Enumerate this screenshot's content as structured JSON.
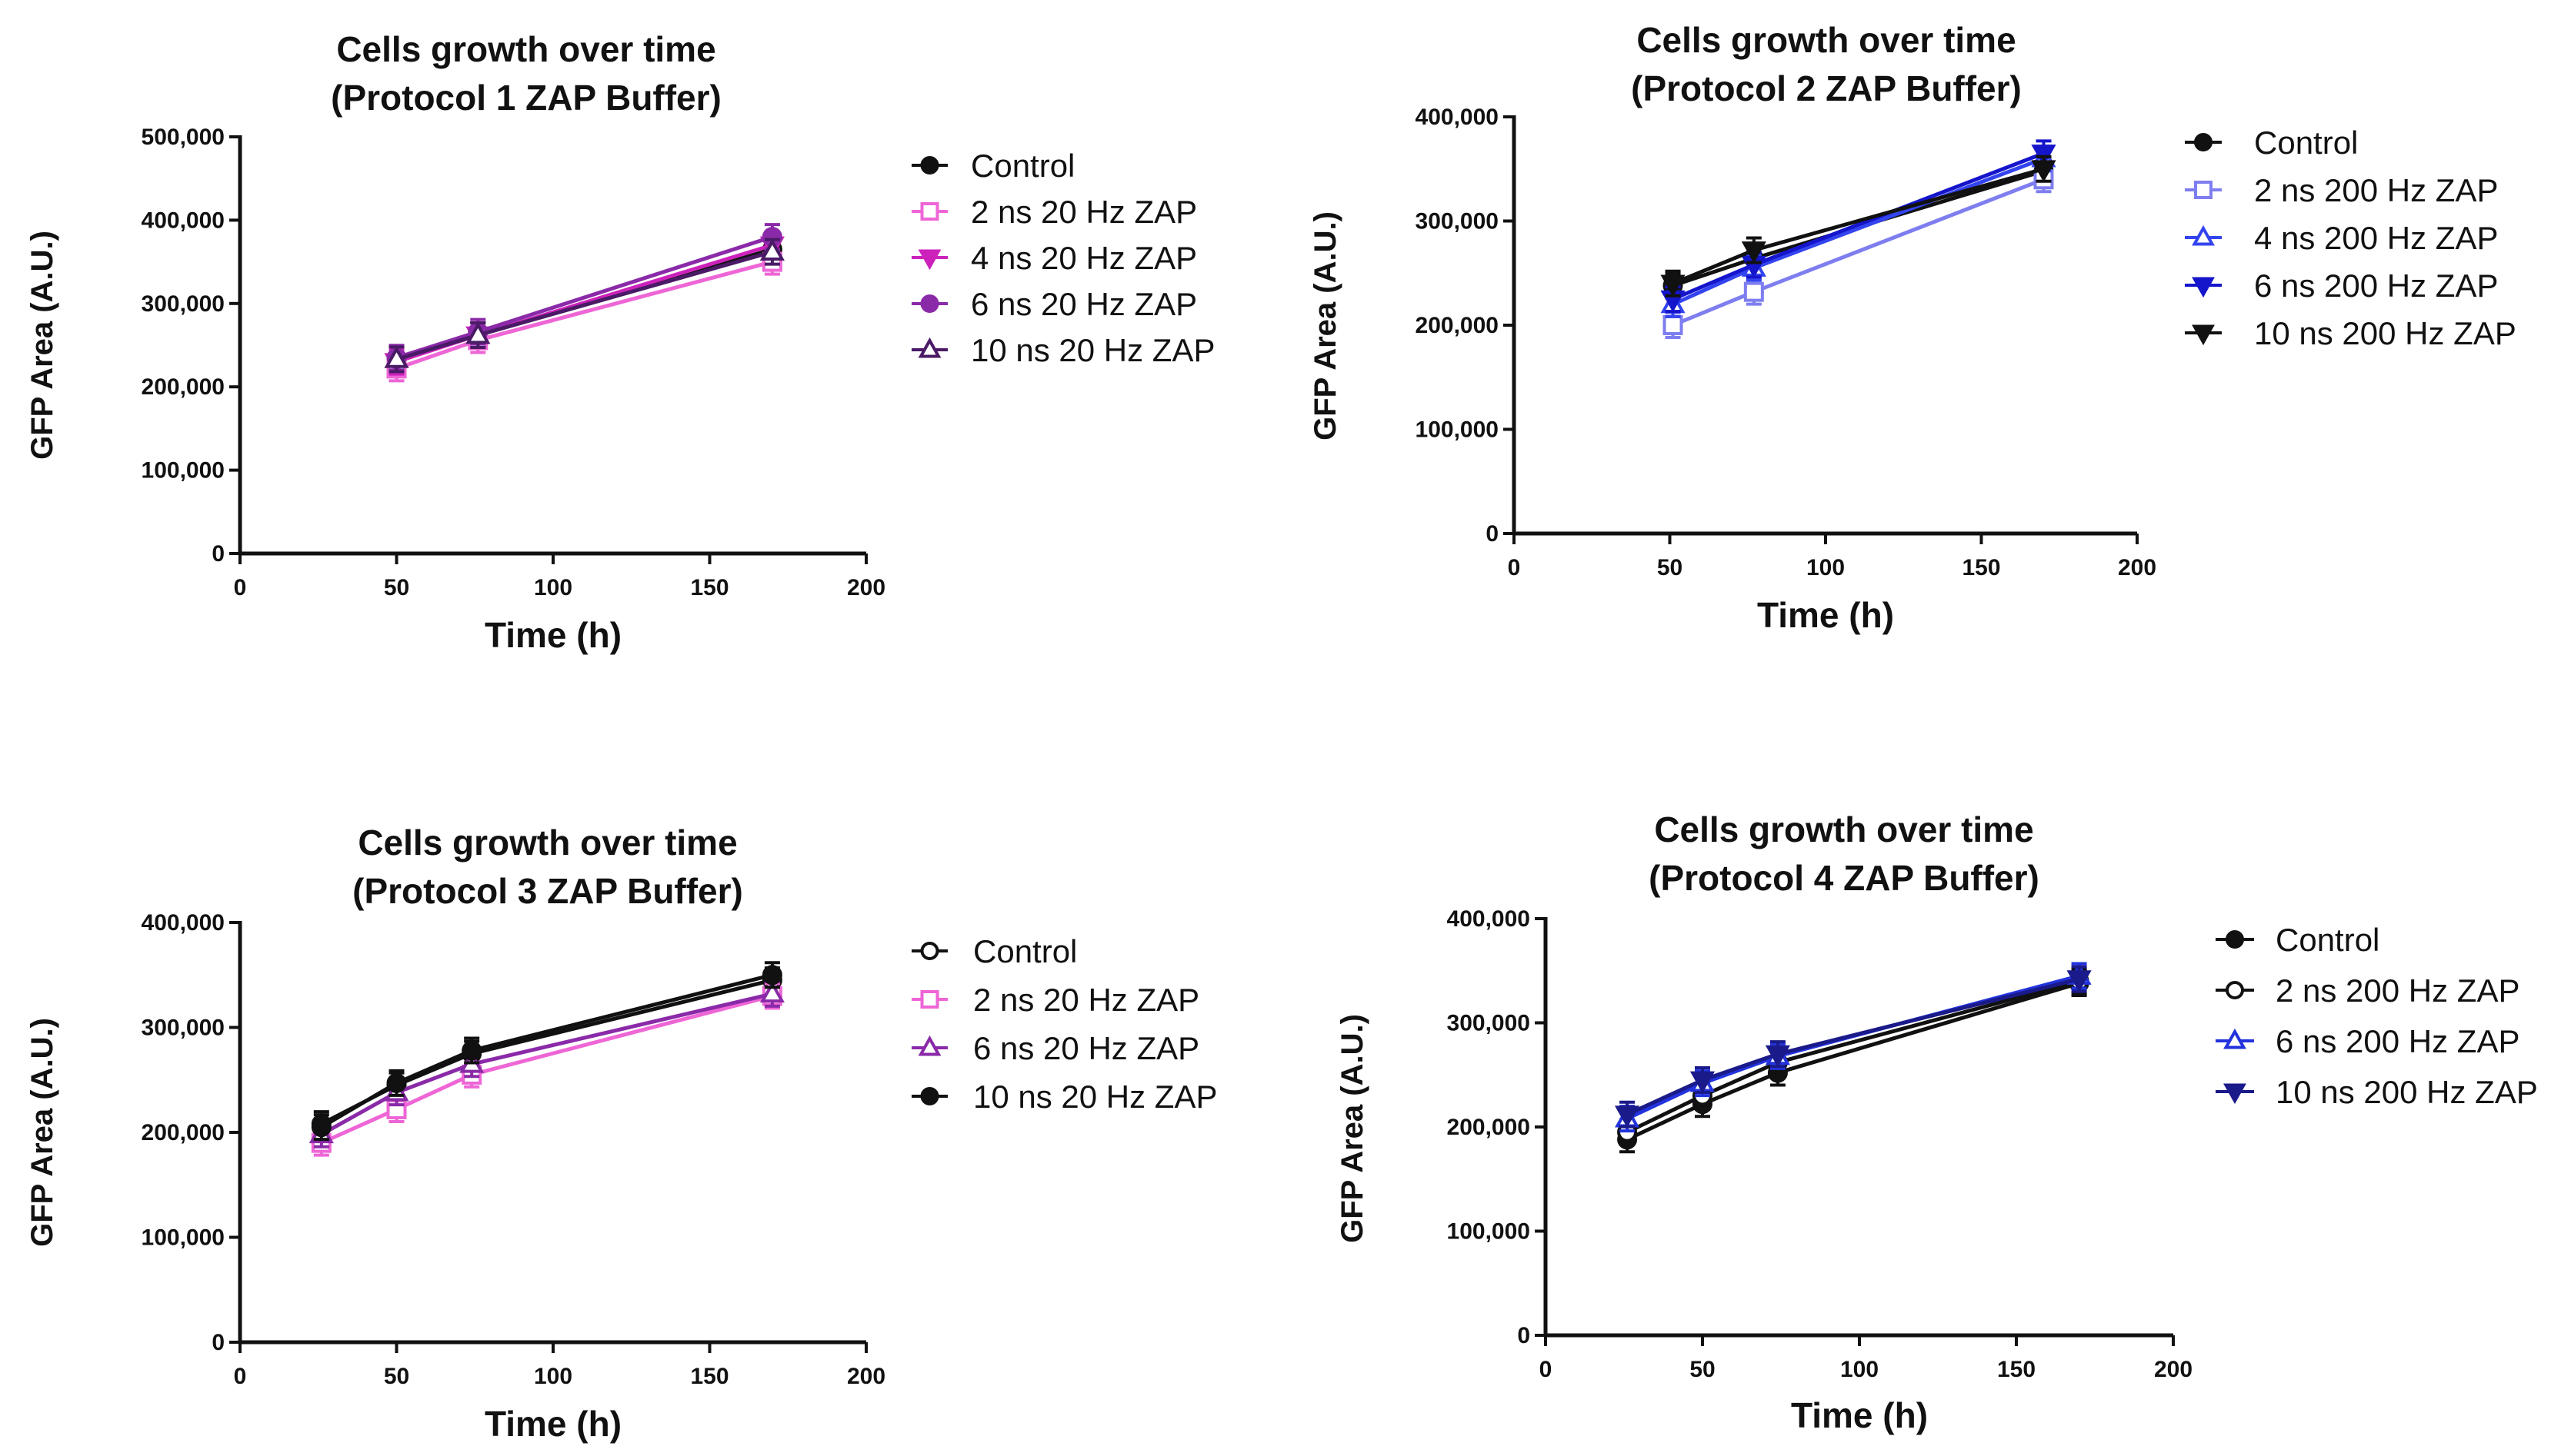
{
  "chart_data": [
    {
      "type": "line",
      "title": "Cells growth over time",
      "subtitle": "(Protocol 1 ZAP Buffer)",
      "xlabel": "Time (h)",
      "ylabel": "GFP Area (A.U.)",
      "xlim": [
        0,
        200
      ],
      "ylim": [
        0,
        500000
      ],
      "xticks": [
        0,
        50,
        100,
        150,
        200
      ],
      "xtick_labels": [
        "0",
        "50",
        "100",
        "150",
        "200"
      ],
      "yticks": [
        0,
        100000,
        200000,
        300000,
        400000,
        500000
      ],
      "ytick_labels": [
        "0",
        "100,000",
        "200,000",
        "300,000",
        "400,000",
        "500,000"
      ],
      "legend_position": "right",
      "series": [
        {
          "name": "Control",
          "color": "#111111",
          "marker": "circle",
          "fill": "filled",
          "x": [
            50,
            76,
            170
          ],
          "y": [
            232000,
            262000,
            365000
          ]
        },
        {
          "name": "2 ns 20 Hz ZAP",
          "color": "#ee66d6",
          "marker": "square",
          "fill": "open",
          "x": [
            50,
            76,
            170
          ],
          "y": [
            222000,
            256000,
            350000
          ]
        },
        {
          "name": "4 ns 20 Hz ZAP",
          "color": "#cc22bb",
          "marker": "triangle-down",
          "fill": "filled",
          "x": [
            50,
            76,
            170
          ],
          "y": [
            230000,
            262000,
            370000
          ]
        },
        {
          "name": "6 ns 20 Hz ZAP",
          "color": "#8a2aa8",
          "marker": "circle",
          "fill": "filled",
          "x": [
            50,
            76,
            170
          ],
          "y": [
            235000,
            266000,
            380000
          ]
        },
        {
          "name": "10 ns 20 Hz ZAP",
          "color": "#4a1a66",
          "marker": "triangle-up",
          "fill": "open",
          "x": [
            50,
            76,
            170
          ],
          "y": [
            233000,
            262000,
            362000
          ]
        }
      ]
    },
    {
      "type": "line",
      "title": "Cells growth over time",
      "subtitle": "(Protocol 2 ZAP Buffer)",
      "xlabel": "Time (h)",
      "ylabel": "GFP Area (A.U.)",
      "xlim": [
        0,
        200
      ],
      "ylim": [
        0,
        400000
      ],
      "xticks": [
        0,
        50,
        100,
        150,
        200
      ],
      "xtick_labels": [
        "0",
        "50",
        "100",
        "150",
        "200"
      ],
      "yticks": [
        0,
        100000,
        200000,
        300000,
        400000
      ],
      "ytick_labels": [
        "0",
        "100,000",
        "200,000",
        "300,000",
        "400,000"
      ],
      "legend_position": "right",
      "series": [
        {
          "name": "Control",
          "color": "#111111",
          "marker": "circle",
          "fill": "filled",
          "x": [
            51,
            77,
            170
          ],
          "y": [
            238000,
            264000,
            348000
          ]
        },
        {
          "name": "2 ns 200 Hz ZAP",
          "color": "#7e7ef0",
          "marker": "square",
          "fill": "open",
          "x": [
            51,
            77,
            170
          ],
          "y": [
            200000,
            232000,
            340000
          ]
        },
        {
          "name": "4 ns 200 Hz ZAP",
          "color": "#3344ee",
          "marker": "triangle-up",
          "fill": "open",
          "x": [
            51,
            77,
            170
          ],
          "y": [
            220000,
            255000,
            360000
          ]
        },
        {
          "name": "6 ns 200 Hz ZAP",
          "color": "#1515cc",
          "marker": "triangle-down",
          "fill": "filled",
          "x": [
            51,
            77,
            170
          ],
          "y": [
            225000,
            258000,
            365000
          ]
        },
        {
          "name": "10 ns 200 Hz ZAP",
          "color": "#111111",
          "marker": "triangle-down",
          "fill": "filled",
          "x": [
            51,
            77,
            170
          ],
          "y": [
            240000,
            272000,
            350000
          ]
        }
      ]
    },
    {
      "type": "line",
      "title": "Cells growth over time",
      "subtitle": "(Protocol 3 ZAP Buffer)",
      "xlabel": "Time (h)",
      "ylabel": "GFP Area (A.U.)",
      "xlim": [
        0,
        200
      ],
      "ylim": [
        0,
        400000
      ],
      "xticks": [
        0,
        50,
        100,
        150,
        200
      ],
      "xtick_labels": [
        "0",
        "50",
        "100",
        "150",
        "200"
      ],
      "yticks": [
        0,
        100000,
        200000,
        300000,
        400000
      ],
      "ytick_labels": [
        "0",
        "100,000",
        "200,000",
        "300,000",
        "400,000"
      ],
      "legend_position": "right",
      "series": [
        {
          "name": "Control",
          "color": "#111111",
          "marker": "circle",
          "fill": "open",
          "x": [
            26,
            50,
            74,
            170
          ],
          "y": [
            208000,
            245000,
            275000,
            345000
          ]
        },
        {
          "name": "2 ns 20 Hz ZAP",
          "color": "#ee66d6",
          "marker": "square",
          "fill": "open",
          "x": [
            26,
            50,
            74,
            170
          ],
          "y": [
            190000,
            222000,
            255000,
            330000
          ]
        },
        {
          "name": "6 ns 20 Hz ZAP",
          "color": "#8a2aa8",
          "marker": "triangle-up",
          "fill": "open",
          "x": [
            26,
            50,
            74,
            170
          ],
          "y": [
            198000,
            238000,
            265000,
            332000
          ]
        },
        {
          "name": "10 ns 20 Hz ZAP",
          "color": "#111111",
          "marker": "circle",
          "fill": "filled",
          "x": [
            26,
            50,
            74,
            170
          ],
          "y": [
            205000,
            247000,
            278000,
            350000
          ]
        }
      ]
    },
    {
      "type": "line",
      "title": "Cells growth over time",
      "subtitle": "(Protocol 4 ZAP Buffer)",
      "xlabel": "Time (h)",
      "ylabel": "GFP Area (A.U.)",
      "xlim": [
        0,
        200
      ],
      "ylim": [
        0,
        400000
      ],
      "xticks": [
        0,
        50,
        100,
        150,
        200
      ],
      "xtick_labels": [
        "0",
        "50",
        "100",
        "150",
        "200"
      ],
      "yticks": [
        0,
        100000,
        200000,
        300000,
        400000
      ],
      "ytick_labels": [
        "0",
        "100,000",
        "200,000",
        "300,000",
        "400,000"
      ],
      "legend_position": "right",
      "series": [
        {
          "name": "Control",
          "color": "#111111",
          "marker": "circle",
          "fill": "filled",
          "x": [
            26,
            50,
            74,
            170
          ],
          "y": [
            188000,
            222000,
            252000,
            338000
          ]
        },
        {
          "name": "2 ns 200 Hz ZAP",
          "color": "#111111",
          "marker": "circle",
          "fill": "open",
          "x": [
            26,
            50,
            74,
            170
          ],
          "y": [
            195000,
            230000,
            262000,
            340000
          ]
        },
        {
          "name": "6 ns 200 Hz ZAP",
          "color": "#2233dd",
          "marker": "triangle-up",
          "fill": "open",
          "x": [
            26,
            50,
            74,
            170
          ],
          "y": [
            208000,
            242000,
            268000,
            345000
          ]
        },
        {
          "name": "10 ns 200 Hz ZAP",
          "color": "#1a1a8a",
          "marker": "triangle-down",
          "fill": "filled",
          "x": [
            26,
            50,
            74,
            170
          ],
          "y": [
            212000,
            245000,
            270000,
            342000
          ]
        }
      ]
    }
  ]
}
